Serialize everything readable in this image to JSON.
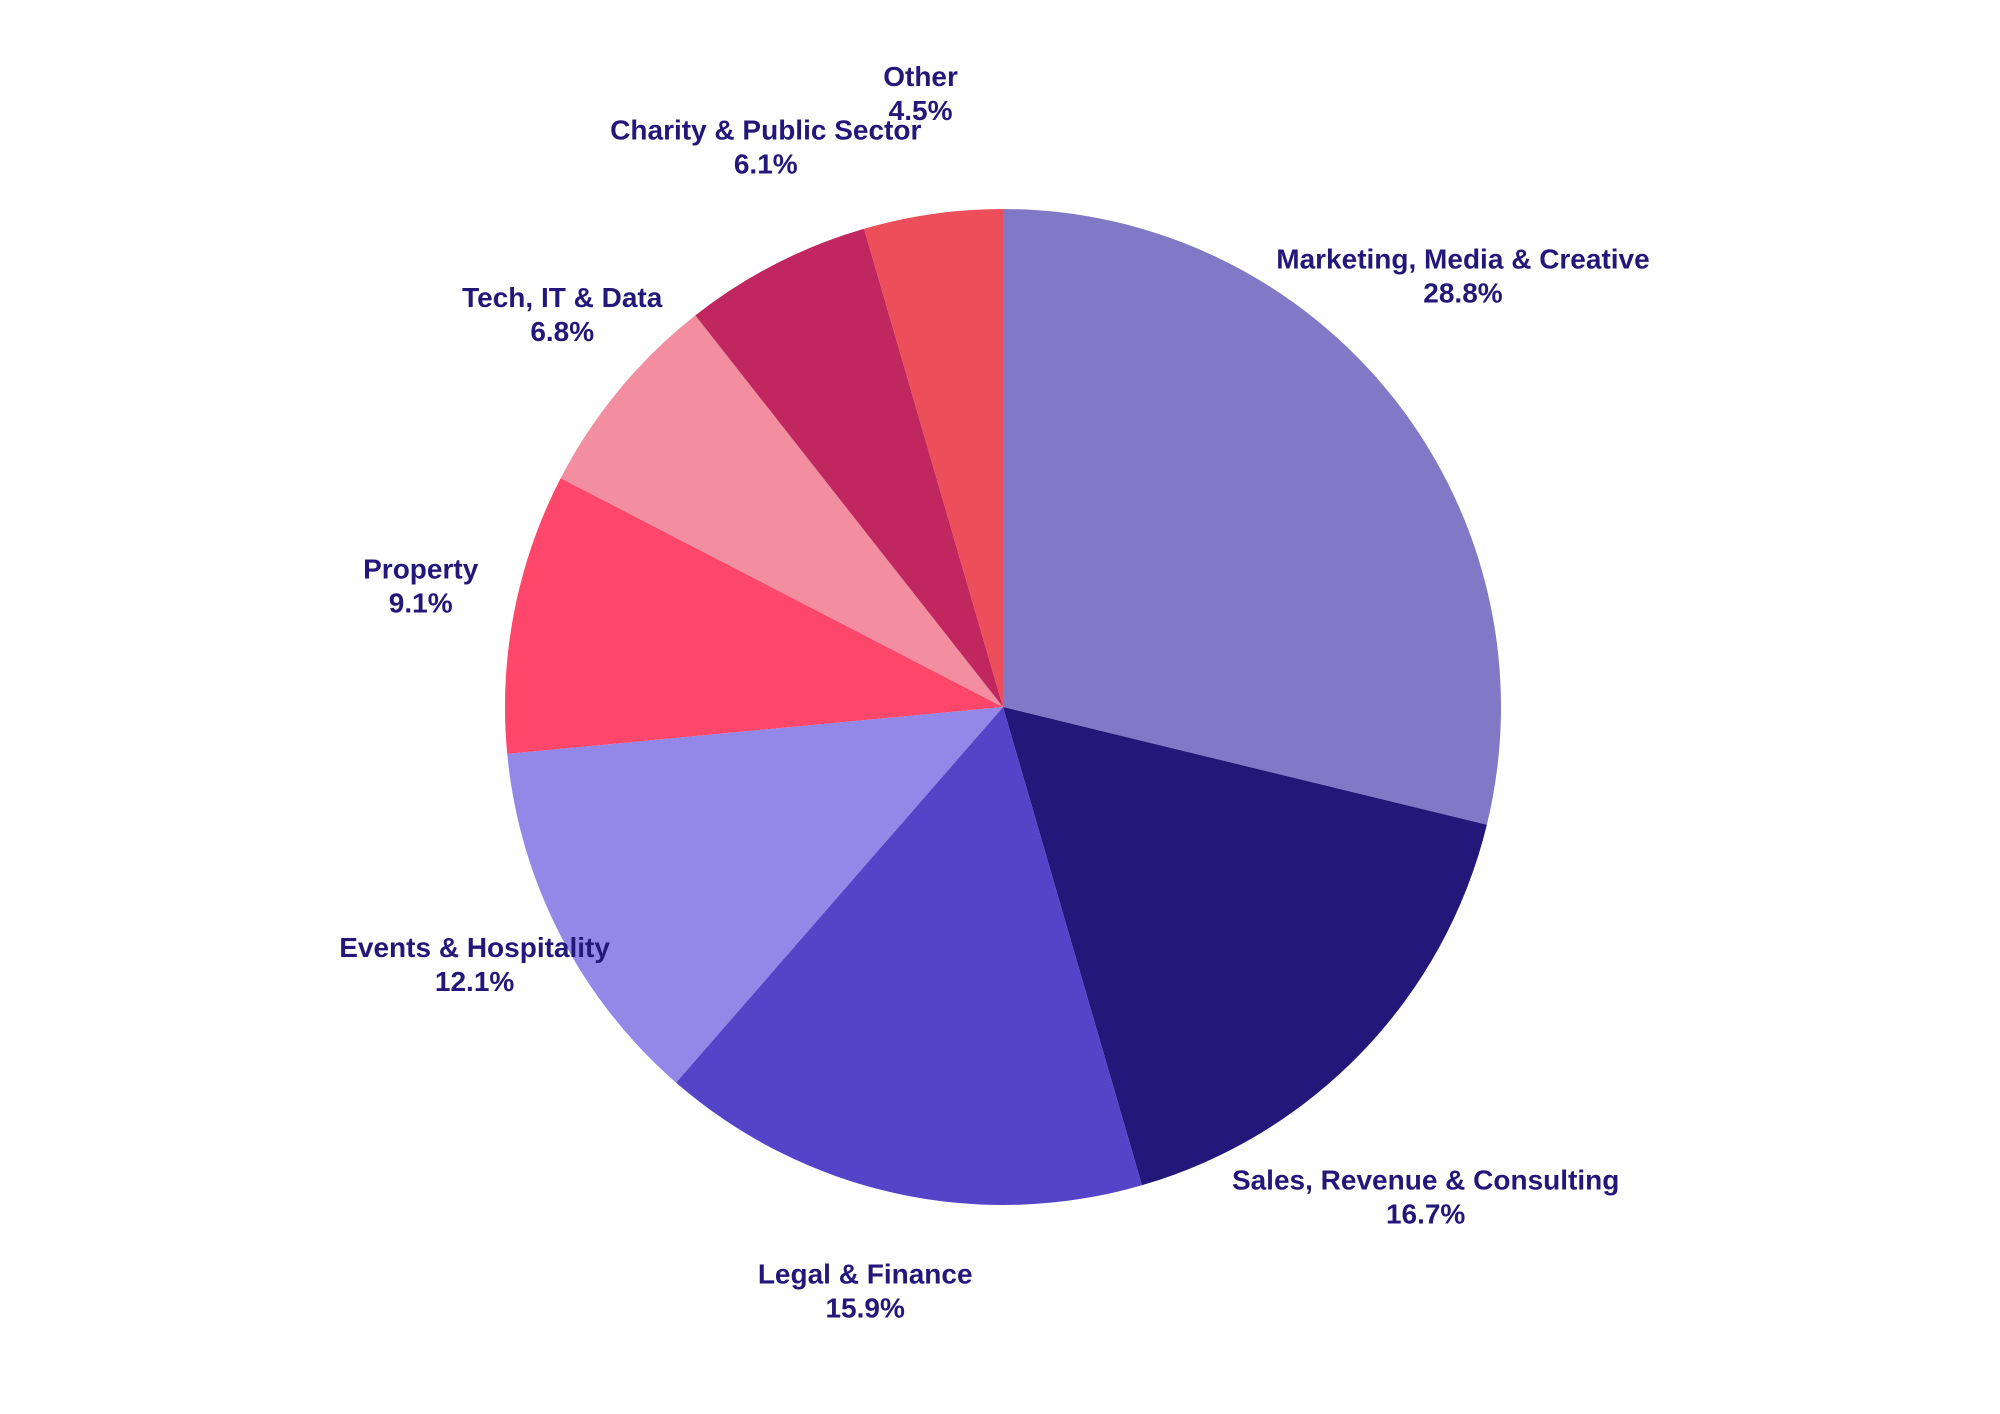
{
  "chart_data": {
    "type": "pie",
    "start": "12 o'clock",
    "direction": "clockwise",
    "slices": [
      {
        "label": "Marketing, Media & Creative",
        "value": 28.8,
        "value_label": "28.8%",
        "color": "#8279c6"
      },
      {
        "label": "Sales, Revenue & Consulting",
        "value": 16.7,
        "value_label": "16.7%",
        "color": "#24177a"
      },
      {
        "label": "Legal & Finance",
        "value": 15.9,
        "value_label": "15.9%",
        "color": "#5344c8"
      },
      {
        "label": "Events & Hospitality",
        "value": 12.1,
        "value_label": "12.1%",
        "color": "#9388e8"
      },
      {
        "label": "Property",
        "value": 9.1,
        "value_label": "9.1%",
        "color": "#ff476b"
      },
      {
        "label": "Tech, IT & Data",
        "value": 6.8,
        "value_label": "6.8%",
        "color": "#f38da0"
      },
      {
        "label": "Charity & Public Sector",
        "value": 6.1,
        "value_label": "6.1%",
        "color": "#c1275f"
      },
      {
        "label": "Other",
        "value": 4.5,
        "value_label": "4.5%",
        "color": "#ec4f5a"
      }
    ]
  }
}
